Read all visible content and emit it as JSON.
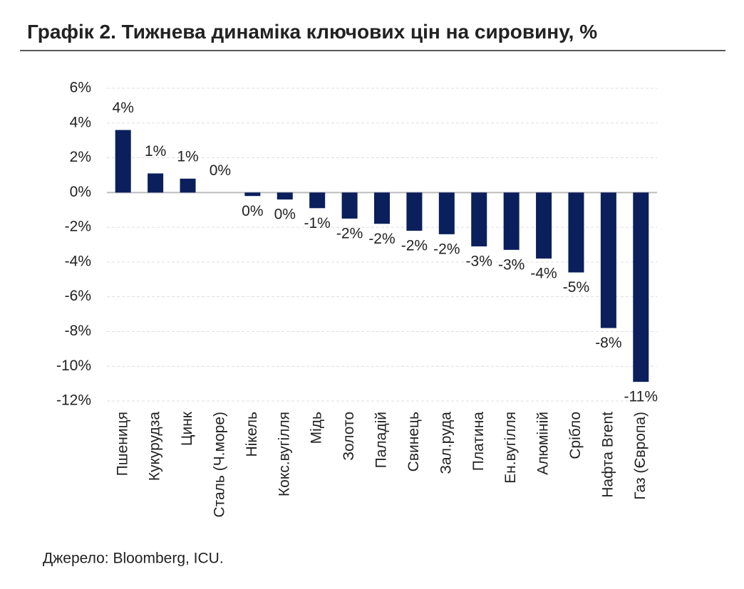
{
  "chart_data": {
    "type": "bar",
    "title": "Графік 2. Тижнева динаміка ключових цін на сировину, %",
    "source": "Джерело: Bloomberg, ICU.",
    "categories": [
      "Пшениця",
      "Кукурудза",
      "Цинк",
      "Сталь (Ч.море)",
      "Нікель",
      "Кокс.вугілля",
      "Мідь",
      "Золото",
      "Паладій",
      "Свинець",
      "Зал.руда",
      "Платина",
      "Ен.вугілля",
      "Алюміній",
      "Срібло",
      "Нафта Brent",
      "Газ (Європа)"
    ],
    "values": [
      3.6,
      1.1,
      0.8,
      0.0,
      -0.2,
      -0.4,
      -0.9,
      -1.5,
      -1.8,
      -2.2,
      -2.4,
      -3.1,
      -3.3,
      -3.8,
      -4.6,
      -7.8,
      -10.9
    ],
    "value_labels": [
      "4%",
      "1%",
      "1%",
      "0%",
      "0%",
      "0%",
      "-1%",
      "-2%",
      "-2%",
      "-2%",
      "-2%",
      "-3%",
      "-3%",
      "-4%",
      "-5%",
      "-8%",
      "-11%"
    ],
    "color": "#0a1f5c",
    "ylim": [
      -12,
      6
    ],
    "yticks": [
      {
        "value": -12,
        "label": "-12%"
      },
      {
        "value": -10,
        "label": "-10%"
      },
      {
        "value": -8,
        "label": "-8%"
      },
      {
        "value": -6,
        "label": "-6%"
      },
      {
        "value": -4,
        "label": "-4%"
      },
      {
        "value": -2,
        "label": "-2%"
      },
      {
        "value": 0,
        "label": "0%"
      },
      {
        "value": 2,
        "label": "2%"
      },
      {
        "value": 4,
        "label": "4%"
      },
      {
        "value": 6,
        "label": "6%"
      }
    ],
    "grid": true
  }
}
